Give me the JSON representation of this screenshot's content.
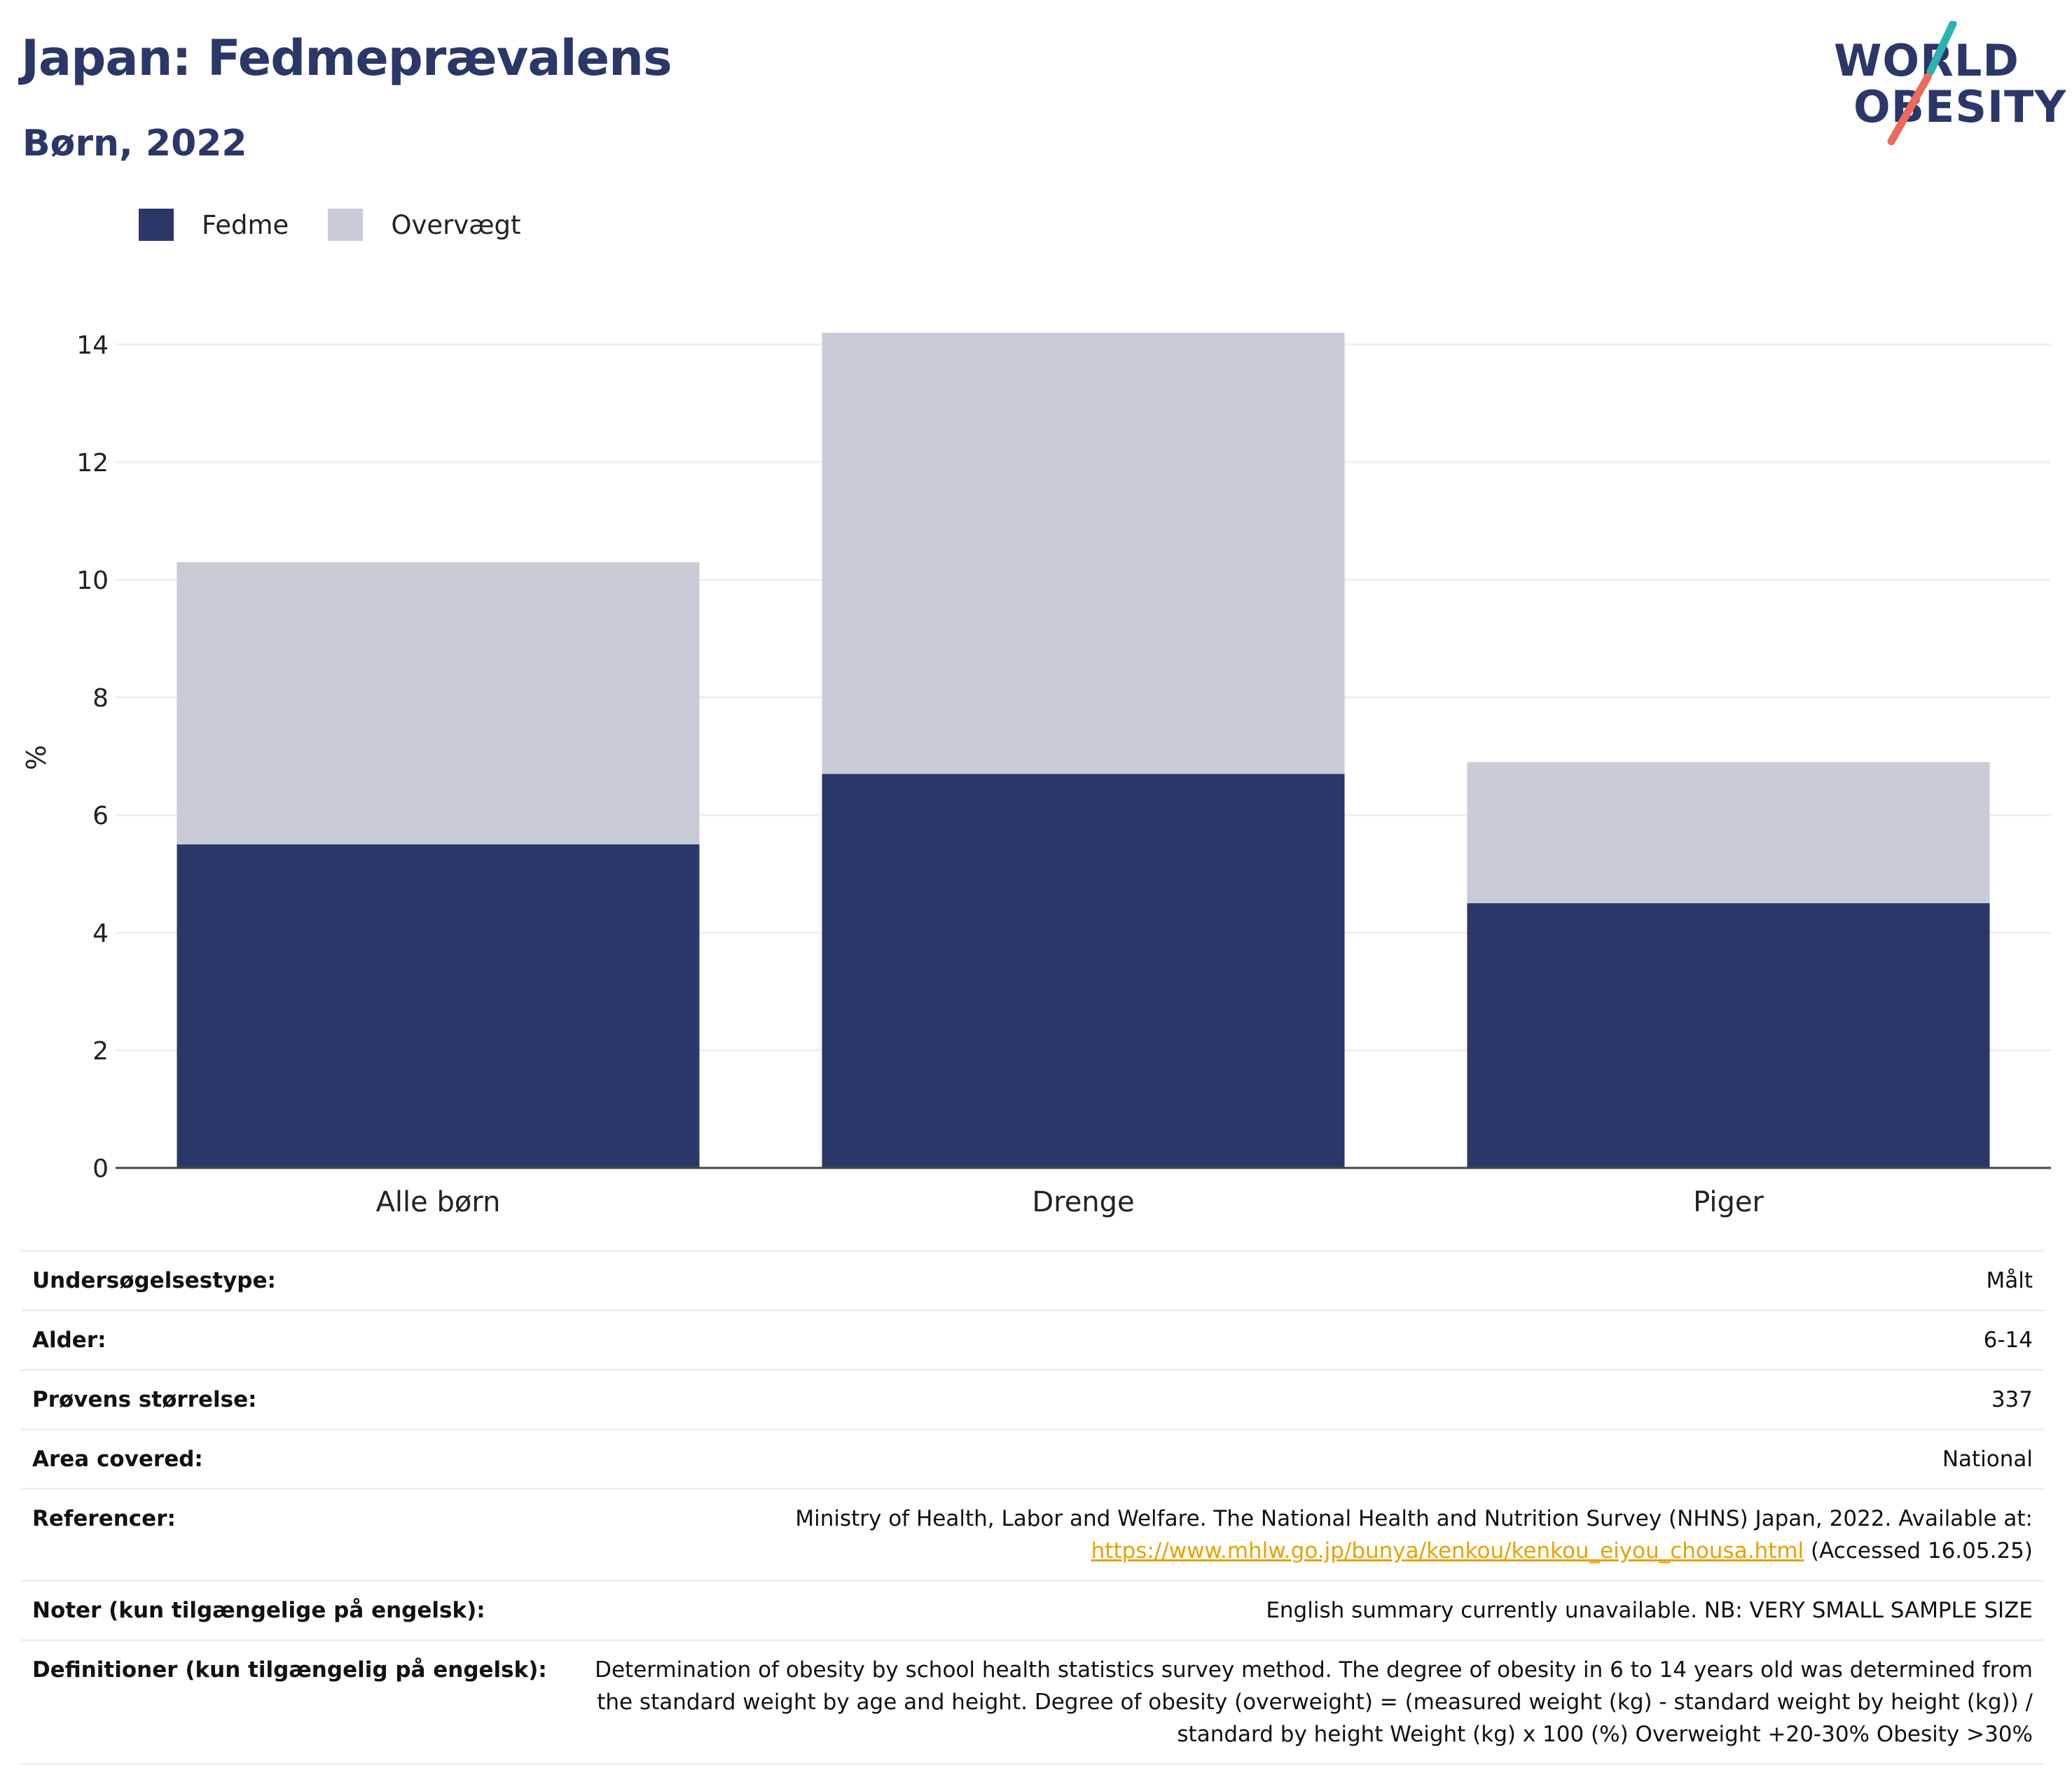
{
  "header": {
    "title": "Japan: Fedmeprævalens",
    "subtitle": "Børn, 2022"
  },
  "logo": {
    "line1": "WORLD",
    "line2": "OBESITY",
    "colors": {
      "navy": "#2b3768",
      "teal": "#2bb3b1",
      "coral": "#ec6a5c"
    }
  },
  "legend": [
    {
      "label": "Fedme",
      "color": "#2b3768"
    },
    {
      "label": "Overvægt",
      "color": "#c9cbd6"
    }
  ],
  "chart_data": {
    "type": "bar",
    "stacked": true,
    "categories": [
      "Alle børn",
      "Drenge",
      "Piger"
    ],
    "series": [
      {
        "name": "Fedme",
        "values": [
          5.5,
          6.7,
          4.5
        ],
        "color": "#2b3768"
      },
      {
        "name": "Overvægt",
        "values": [
          4.8,
          7.5,
          2.4
        ],
        "color": "#c9cbd6"
      }
    ],
    "ylabel": "%",
    "xlabel": "",
    "ylim": [
      0,
      14.5
    ],
    "yticks": [
      0,
      2,
      4,
      6,
      8,
      10,
      12,
      14
    ],
    "grid": true,
    "legend_position": "top-left"
  },
  "meta": [
    {
      "key": "Undersøgelsestype:",
      "value": "Målt"
    },
    {
      "key": "Alder:",
      "value": "6-14"
    },
    {
      "key": "Prøvens størrelse:",
      "value": "337"
    },
    {
      "key": "Area covered:",
      "value": "National"
    },
    {
      "key": "Referencer:",
      "value": "Ministry of Health, Labor and Welfare. The National Health and Nutrition Survey (NHNS) Japan, 2022. Available at:",
      "link": "https://www.mhlw.go.jp/bunya/kenkou/kenkou_eiyou_chousa.html",
      "suffix": " (Accessed 16.05.25)"
    },
    {
      "key": "Noter (kun tilgængelige på engelsk):",
      "value": "English summary currently unavailable. NB: VERY SMALL SAMPLE SIZE"
    },
    {
      "key": "Definitioner (kun tilgængelig på engelsk):",
      "value": "Determination of obesity by school health statistics survey method. The degree of obesity in 6 to 14 years old was determined from the standard weight by age and height. Degree of obesity (overweight) = (measured weight (kg) - standard weight by height (kg)) / standard by height Weight (kg) x 100 (%) Overweight +20-30% Obesity >30%"
    }
  ]
}
